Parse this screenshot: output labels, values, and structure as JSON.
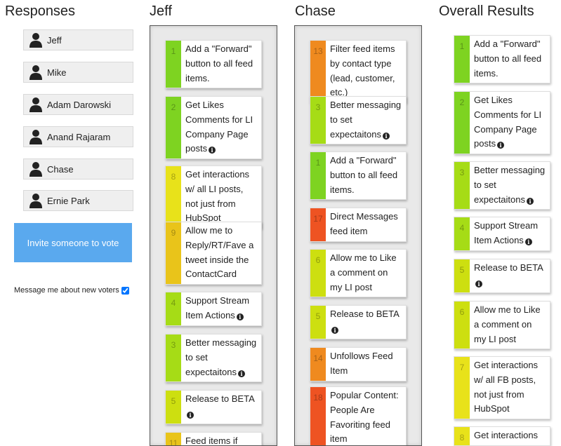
{
  "columns": {
    "responses_title": "Responses",
    "jeff_title": "Jeff",
    "chase_title": "Chase",
    "overall_title": "Overall Results"
  },
  "responses": {
    "people": [
      "Jeff",
      "Mike",
      "Adam Darowski",
      "Anand Rajaram",
      "Chase",
      "Ernie Park"
    ],
    "invite_label": "Invite someone to vote",
    "message_label": "Message me about new voters",
    "message_checked": true
  },
  "info_icon": "i",
  "jeff_cards": [
    {
      "rank": "1",
      "text": "Add a \"Forward\" button to all feed items.",
      "color": "#7ed321",
      "info": false
    },
    {
      "rank": "2",
      "text": "Get Likes Comments for LI Company Page posts",
      "color": "#7ed321",
      "info": true
    },
    {
      "rank": "8",
      "text": "Get interactions w/ all LI posts, not just from HubSpot",
      "color": "#e8e21a",
      "info": false
    },
    {
      "rank": "9",
      "text": "Allow me to Reply/RT/Fave a tweet inside the ContactCard",
      "color": "#e9c41a",
      "info": false
    },
    {
      "rank": "4",
      "text": "Support Stream Item Actions",
      "color": "#a6dc16",
      "info": true
    },
    {
      "rank": "3",
      "text": "Better messaging to set expectaitons",
      "color": "#a6dc16",
      "info": true
    },
    {
      "rank": "5",
      "text": "Release to BETA",
      "color": "#cddf10",
      "info": true
    },
    {
      "rank": "11",
      "text": "Feed items if",
      "color": "#e9c41a",
      "info": false
    }
  ],
  "chase_cards": [
    {
      "rank": "13",
      "text": "Filter feed items by contact type (lead, customer, etc.)",
      "color": "#ef8a1f",
      "info": false
    },
    {
      "rank": "3",
      "text": "Better messaging to set expectaitons",
      "color": "#a6dc16",
      "info": true
    },
    {
      "rank": "1",
      "text": "Add a \"Forward\" button to all feed items.",
      "color": "#7ed321",
      "info": false
    },
    {
      "rank": "17",
      "text": "Direct Messages feed item",
      "color": "#ee5322",
      "info": false
    },
    {
      "rank": "6",
      "text": "Allow me to Like a comment on my LI post",
      "color": "#cddf10",
      "info": false
    },
    {
      "rank": "5",
      "text": "Release to BETA",
      "color": "#cddf10",
      "info": true
    },
    {
      "rank": "14",
      "text": "Unfollows Feed Item",
      "color": "#ef8a1f",
      "info": false
    },
    {
      "rank": "18",
      "text": "Popular Content: People Are Favoriting feed item",
      "color": "#ee5322",
      "info": false
    }
  ],
  "overall_cards": [
    {
      "rank": "1",
      "text": "Add a \"Forward\" button to all feed items.",
      "color": "#7ed321",
      "info": false
    },
    {
      "rank": "2",
      "text": "Get Likes Comments for LI Company Page posts",
      "color": "#7ed321",
      "info": true
    },
    {
      "rank": "3",
      "text": "Better messaging to set expectaitons",
      "color": "#a6dc16",
      "info": true
    },
    {
      "rank": "4",
      "text": "Support Stream Item Actions",
      "color": "#a6dc16",
      "info": true
    },
    {
      "rank": "5",
      "text": "Release to BETA",
      "color": "#cddf10",
      "info": true
    },
    {
      "rank": "6",
      "text": "Allow me to Like a comment on my LI post",
      "color": "#cddf10",
      "info": false
    },
    {
      "rank": "7",
      "text": "Get interactions w/ all FB posts, not just from HubSpot",
      "color": "#e8e21a",
      "info": false
    },
    {
      "rank": "8",
      "text": "Get interactions",
      "color": "#e8e21a",
      "info": false
    }
  ]
}
